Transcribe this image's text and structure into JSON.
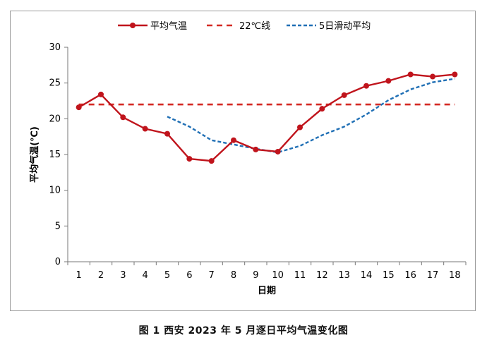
{
  "chart_data": {
    "type": "line",
    "title": "",
    "xlabel": "日期",
    "ylabel": "平均气温(℃)",
    "categories": [
      "1",
      "2",
      "3",
      "4",
      "5",
      "6",
      "7",
      "8",
      "9",
      "10",
      "11",
      "12",
      "13",
      "14",
      "15",
      "16",
      "17",
      "18"
    ],
    "ylim": [
      0,
      30
    ],
    "yticks": [
      0,
      5,
      10,
      15,
      20,
      25,
      30
    ],
    "legend_position": "top",
    "series": [
      {
        "name": "平均气温",
        "style": "solid-marker",
        "color": "#c0141c",
        "values": [
          21.6,
          23.4,
          20.2,
          18.6,
          17.9,
          14.4,
          14.1,
          17.0,
          15.7,
          15.4,
          18.8,
          21.4,
          23.3,
          24.6,
          25.3,
          26.2,
          25.9,
          26.2
        ]
      },
      {
        "name": "22℃线",
        "style": "dashed",
        "color": "#d42a24",
        "values": [
          22,
          22,
          22,
          22,
          22,
          22,
          22,
          22,
          22,
          22,
          22,
          22,
          22,
          22,
          22,
          22,
          22,
          22
        ]
      },
      {
        "name": "5日滑动平均",
        "style": "dotted",
        "color": "#1f6fb5",
        "values": [
          null,
          null,
          null,
          null,
          20.3,
          18.9,
          17.0,
          16.4,
          15.8,
          15.3,
          16.2,
          17.7,
          18.9,
          20.6,
          22.6,
          24.1,
          25.1,
          25.6
        ]
      }
    ]
  },
  "caption": "图 1  西安 2023 年 5 月逐日平均气温变化图"
}
